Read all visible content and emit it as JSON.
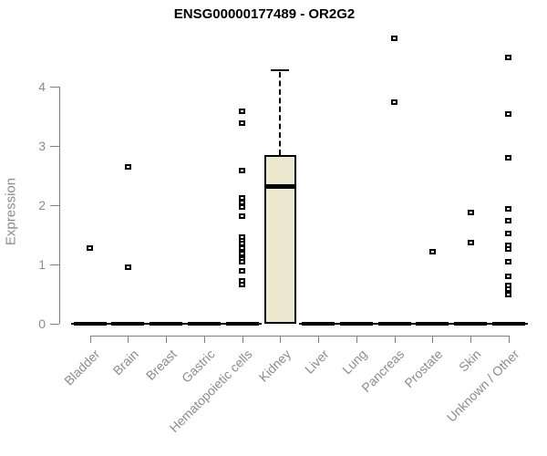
{
  "header": {
    "title": "ENSG00000177489 - OR2G2"
  },
  "chart_data": {
    "type": "boxplot",
    "title": "ENSG00000177489 - OR2G2",
    "xlabel": "",
    "ylabel": "Expression",
    "yticks": [
      0,
      1,
      2,
      3,
      4
    ],
    "ylim": [
      0,
      4.95
    ],
    "grid": false,
    "legend": "none",
    "categories": [
      "Bladder",
      "Brain",
      "Breast",
      "Gastric",
      "Hematopoietic cells",
      "Kidney",
      "Liver",
      "Lung",
      "Pancreas",
      "Prostate",
      "Skin",
      "Unknown / Other"
    ],
    "boxes": [
      {
        "category": "Bladder",
        "q1": 0,
        "median": 0,
        "q3": 0,
        "whisker_low": 0,
        "whisker_high": 0,
        "outliers": [
          1.28
        ]
      },
      {
        "category": "Brain",
        "q1": 0,
        "median": 0,
        "q3": 0,
        "whisker_low": 0,
        "whisker_high": 0,
        "outliers": [
          2.65,
          0.95
        ]
      },
      {
        "category": "Breast",
        "q1": 0,
        "median": 0,
        "q3": 0,
        "whisker_low": 0,
        "whisker_high": 0,
        "outliers": []
      },
      {
        "category": "Gastric",
        "q1": 0,
        "median": 0,
        "q3": 0,
        "whisker_low": 0,
        "whisker_high": 0,
        "outliers": []
      },
      {
        "category": "Hematopoietic cells",
        "q1": 0,
        "median": 0,
        "q3": 0,
        "whisker_low": 0,
        "whisker_high": 0,
        "outliers": [
          3.58,
          3.38,
          2.58,
          2.12,
          2.05,
          1.97,
          1.82,
          1.46,
          1.4,
          1.35,
          1.28,
          1.18,
          1.09,
          1.05,
          0.89,
          0.72,
          0.66
        ]
      },
      {
        "category": "Kidney",
        "q1": 0,
        "median": 2.31,
        "q3": 2.84,
        "whisker_low": 0,
        "whisker_high": 4.28,
        "outliers": []
      },
      {
        "category": "Liver",
        "q1": 0,
        "median": 0,
        "q3": 0,
        "whisker_low": 0,
        "whisker_high": 0,
        "outliers": []
      },
      {
        "category": "Lung",
        "q1": 0,
        "median": 0,
        "q3": 0,
        "whisker_low": 0,
        "whisker_high": 0,
        "outliers": []
      },
      {
        "category": "Pancreas",
        "q1": 0,
        "median": 0,
        "q3": 0,
        "whisker_low": 0,
        "whisker_high": 0,
        "outliers": [
          4.82,
          3.74
        ]
      },
      {
        "category": "Prostate",
        "q1": 0,
        "median": 0,
        "q3": 0,
        "whisker_low": 0,
        "whisker_high": 0,
        "outliers": [
          1.22
        ]
      },
      {
        "category": "Skin",
        "q1": 0,
        "median": 0,
        "q3": 0,
        "whisker_low": 0,
        "whisker_high": 0,
        "outliers": [
          1.88,
          1.37
        ]
      },
      {
        "category": "Unknown / Other",
        "q1": 0,
        "median": 0,
        "q3": 0,
        "whisker_low": 0,
        "whisker_high": 0,
        "outliers": [
          4.49,
          3.54,
          2.8,
          1.94,
          1.74,
          1.52,
          1.32,
          1.26,
          1.05,
          0.8,
          0.65,
          0.58,
          0.49
        ]
      }
    ],
    "colors": {
      "box_fill": "#EDE8D0",
      "box_border": "#000000",
      "median": "#000000",
      "point": "#000000",
      "axis": "#7f7f7f",
      "tick_label": "#8c8c8c",
      "title": "#000000",
      "background": "#ffffff"
    }
  }
}
